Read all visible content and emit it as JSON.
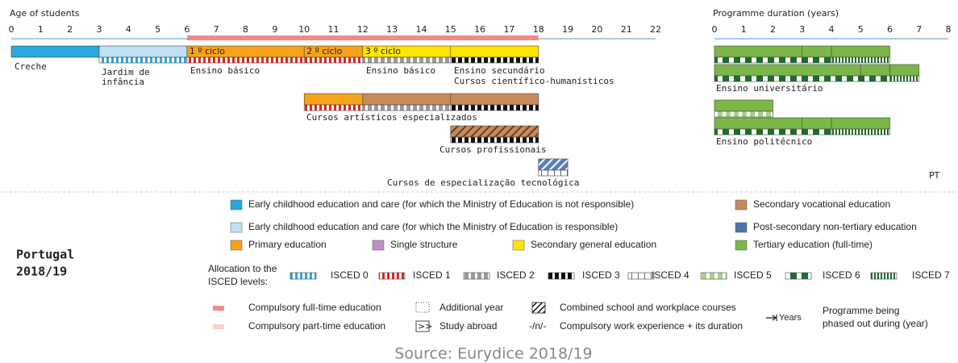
{
  "age_axis": {
    "title": "Age of students",
    "ticks": [
      0,
      1,
      2,
      3,
      4,
      5,
      6,
      7,
      8,
      9,
      10,
      11,
      12,
      13,
      14,
      15,
      16,
      17,
      18,
      19,
      20,
      21,
      22
    ]
  },
  "duration_axis": {
    "title": "Programme duration (years)",
    "ticks": [
      0,
      1,
      2,
      3,
      4,
      5,
      6,
      7,
      8
    ]
  },
  "cycles": [
    "1 º ciclo",
    "2 º ciclo",
    "3 º ciclo"
  ],
  "programmes": [
    "Creche",
    "Jardim de",
    "infância",
    "Ensino básico",
    "Ensino básico",
    "Ensino secundário",
    "Cursos científico-humanísticos",
    "Cursos artísticos especializados",
    "Cursos profissionais",
    "Cursos de especialização tecnológica",
    "Ensino universitário",
    "Ensino politécnico"
  ],
  "country_code": "PT",
  "country": "Portugal",
  "year": "2018/19",
  "legend": [
    "Early childhood education and care (for which the Ministry of Education is not responsible)",
    "Early childhood education and care (for which the Ministry of Education is responsible)",
    "Primary education",
    "Single structure",
    "Secondary general education",
    "Secondary vocational education",
    "Post-secondary non-tertiary education",
    "Tertiary education (full-time)"
  ],
  "isced_title": [
    "Allocation to the",
    "ISCED levels:"
  ],
  "isced": [
    "ISCED 0",
    "ISCED 1",
    "ISCED 2",
    "ISCED 3",
    "ISCED 4",
    "ISCED 5",
    "ISCED 6",
    "ISCED 7"
  ],
  "notes": {
    "full_time": "Compulsory full-time education",
    "part_time": "Compulsory part-time education",
    "additional": "Additional year",
    "abroad_symbol": ">>",
    "abroad": "Study abroad",
    "combined": "Combined school and workplace courses",
    "work_symbol": "-/n/-",
    "work": "Compulsory work experience + its duration",
    "years": "Years",
    "phased": [
      "Programme being",
      "phased out during (year)"
    ]
  },
  "source": "Source: Eurydice 2018/19"
}
